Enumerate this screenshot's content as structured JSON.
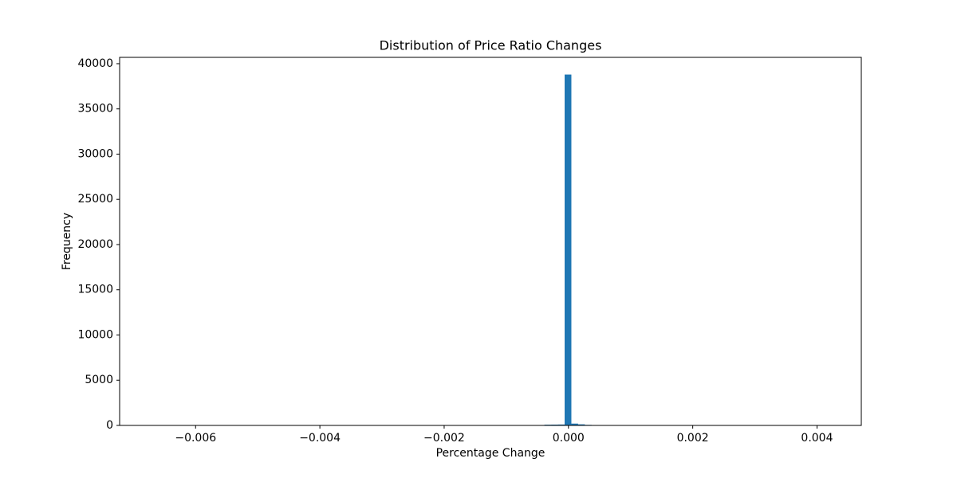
{
  "chart_data": {
    "type": "histogram",
    "title": "Distribution of Price Ratio Changes",
    "x_label": "Percentage Change",
    "y_label": "Frequency",
    "color": "#1f77b4",
    "bins": [
      -0.00668,
      -0.0065715,
      -0.006463,
      -0.0063545,
      -0.006246,
      -0.0061375,
      -0.006029,
      -0.0059205,
      -0.005812,
      -0.0057035,
      -0.005595,
      -0.0054865,
      -0.005378,
      -0.0052695,
      -0.005161,
      -0.0050525,
      -0.004944,
      -0.0048355,
      -0.004727,
      -0.0046185,
      -0.00451,
      -0.0044015,
      -0.004293,
      -0.0041845,
      -0.004076,
      -0.0039675,
      -0.003859,
      -0.0037505,
      -0.003642,
      -0.0035335,
      -0.003425,
      -0.0033165,
      -0.003208,
      -0.0030995,
      -0.002991,
      -0.0028825,
      -0.002774,
      -0.0026655,
      -0.002557,
      -0.0024485,
      -0.00234,
      -0.0022315,
      -0.002123,
      -0.0020145,
      -0.001906,
      -0.0017975,
      -0.001689,
      -0.0015805,
      -0.001472,
      -0.0013635,
      -0.001255,
      -0.0011465,
      -0.001038,
      -0.0009295,
      -0.000821,
      -0.0007125,
      -0.000604,
      -0.0004955,
      -0.000387,
      -0.0002785,
      -0.00017,
      -6.15e-05,
      4.7e-05,
      0.0001555,
      0.000264,
      0.0003725,
      0.000481,
      0.0005895,
      0.000698,
      0.0008065,
      0.000915,
      0.0010235,
      0.001132,
      0.0012405,
      0.001349,
      0.0014575,
      0.001566,
      0.0016745,
      0.001783,
      0.0018915,
      0.002,
      0.0021085,
      0.002217,
      0.0023255,
      0.002434,
      0.0025425,
      0.002651,
      0.0027595,
      0.002868,
      0.0029765,
      0.003085,
      0.0031935,
      0.003302,
      0.0034105,
      0.003519,
      0.0036275,
      0.003736,
      0.0038445,
      0.003953,
      0.0040615,
      0.00417
    ],
    "values": [
      1,
      0,
      0,
      0,
      0,
      0,
      0,
      0,
      0,
      0,
      0,
      0,
      0,
      0,
      0,
      0,
      0,
      0,
      0,
      0,
      0,
      0,
      0,
      0,
      0,
      0,
      0,
      0,
      0,
      0,
      0,
      0,
      0,
      0,
      0,
      0,
      0,
      0,
      0,
      0,
      0,
      0,
      0,
      0,
      0,
      0,
      0,
      0,
      0,
      0,
      0,
      0,
      0,
      0,
      0,
      0,
      0,
      40,
      80,
      90,
      100,
      38800,
      200,
      120,
      60,
      20,
      0,
      0,
      0,
      0,
      0,
      0,
      0,
      0,
      0,
      0,
      0,
      0,
      0,
      0,
      0,
      0,
      0,
      0,
      0,
      0,
      0,
      0,
      0,
      0,
      0,
      0,
      0,
      0,
      0,
      0,
      0,
      0,
      0,
      1
    ],
    "xlim": [
      -0.0072225,
      0.0047125
    ],
    "ylim": [
      0,
      40700
    ],
    "xticks": [
      {
        "value": -0.006,
        "label": "−0.006"
      },
      {
        "value": -0.004,
        "label": "−0.004"
      },
      {
        "value": -0.002,
        "label": "−0.002"
      },
      {
        "value": 0,
        "label": "0.000"
      },
      {
        "value": 0.002,
        "label": "0.002"
      },
      {
        "value": 0.004,
        "label": "0.004"
      }
    ],
    "yticks": [
      0,
      5000,
      10000,
      15000,
      20000,
      25000,
      30000,
      35000,
      40000
    ]
  }
}
